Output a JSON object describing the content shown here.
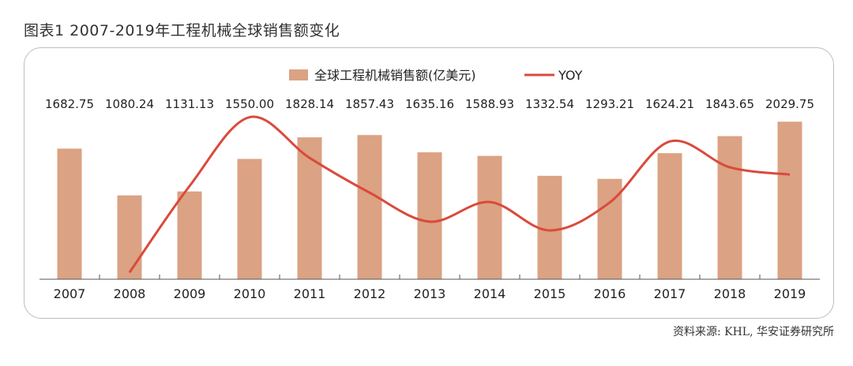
{
  "title": "图表1  2007-2019年工程机械全球销售额变化",
  "source": "资料来源: KHL, 华安证券研究所",
  "chart_data": {
    "type": "bar+line",
    "title": "图表1  2007-2019年工程机械全球销售额变化",
    "categories": [
      "2007",
      "2008",
      "2009",
      "2010",
      "2011",
      "2012",
      "2013",
      "2014",
      "2015",
      "2016",
      "2017",
      "2018",
      "2019"
    ],
    "series": [
      {
        "name": "全球工程机械销售额(亿美元)",
        "type": "bar",
        "color": "#dba283",
        "axis": "left",
        "values": [
          1682.75,
          1080.24,
          1131.13,
          1550.0,
          1828.14,
          1857.43,
          1635.16,
          1588.93,
          1332.54,
          1293.21,
          1624.21,
          1843.65,
          2029.75
        ],
        "labels": [
          "1682.75",
          "1080.24",
          "1131.13",
          "1550.00",
          "1828.14",
          "1857.43",
          "1635.16",
          "1588.93",
          "1332.54",
          "1293.21",
          "1624.21",
          "1843.65",
          "2029.75"
        ]
      },
      {
        "name": "YOY",
        "type": "line",
        "smooth": true,
        "color": "#da4a3c",
        "axis": "right",
        "unit": "%",
        "values": [
          null,
          -35.8,
          4.7,
          37.0,
          17.9,
          1.6,
          -12.0,
          -2.8,
          -16.1,
          -3.0,
          25.6,
          13.5,
          10.1
        ]
      }
    ],
    "ylim": [
      0,
      2500
    ],
    "y2lim": [
      -39,
      52
    ],
    "y_axis_visible": false,
    "grid": false,
    "legend_placement": "top-center"
  }
}
